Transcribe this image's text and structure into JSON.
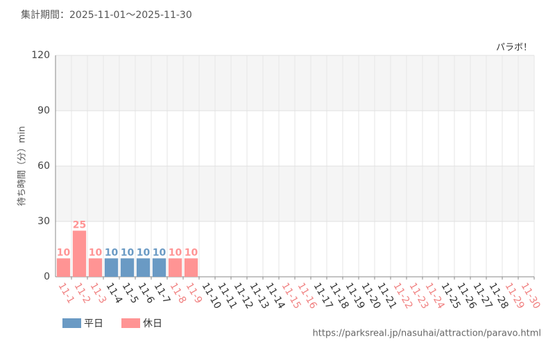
{
  "chart_data": {
    "type": "bar",
    "period": "集計期間：2025-11-01～2025-11-30",
    "annotation": "パラボ！",
    "y_label": "待ち時間（分）min",
    "source": "https://parksreal.jp/nasuhai/attraction/paravo.html",
    "categories": [
      "11-1",
      "11-2",
      "11-3",
      "11-4",
      "11-5",
      "11-6",
      "11-7",
      "11-8",
      "11-9",
      "11-10",
      "11-11",
      "11-12",
      "11-13",
      "11-14",
      "11-15",
      "11-16",
      "11-17",
      "11-18",
      "11-19",
      "11-20",
      "11-21",
      "11-22",
      "11-23",
      "11-24",
      "11-25",
      "11-26",
      "11-27",
      "11-28",
      "11-29",
      "11-30"
    ],
    "category_colors": [
      "#f08080",
      "#f08080",
      "#f08080",
      "#333333",
      "#333333",
      "#333333",
      "#333333",
      "#f08080",
      "#f08080",
      "#333333",
      "#333333",
      "#333333",
      "#333333",
      "#333333",
      "#f08080",
      "#f08080",
      "#333333",
      "#333333",
      "#333333",
      "#333333",
      "#333333",
      "#f08080",
      "#f08080",
      "#f08080",
      "#333333",
      "#333333",
      "#333333",
      "#333333",
      "#f08080",
      "#f08080"
    ],
    "series": [
      {
        "name": "平日",
        "color": "#6a9ac4",
        "values": [
          null,
          null,
          null,
          10,
          10,
          10,
          10,
          null,
          null,
          null,
          null,
          null,
          null,
          null,
          null,
          null,
          null,
          null,
          null,
          null,
          null,
          null,
          null,
          null,
          null,
          null,
          null,
          null,
          null,
          null
        ]
      },
      {
        "name": "休日",
        "color": "#ff9494",
        "values": [
          10,
          25,
          10,
          null,
          null,
          null,
          null,
          10,
          10,
          null,
          null,
          null,
          null,
          null,
          null,
          null,
          null,
          null,
          null,
          null,
          null,
          null,
          null,
          null,
          null,
          null,
          null,
          null,
          null,
          null
        ]
      }
    ],
    "ylim": [
      0,
      120
    ],
    "yticks": [
      0,
      30,
      60,
      90,
      120
    ],
    "grid": true
  }
}
